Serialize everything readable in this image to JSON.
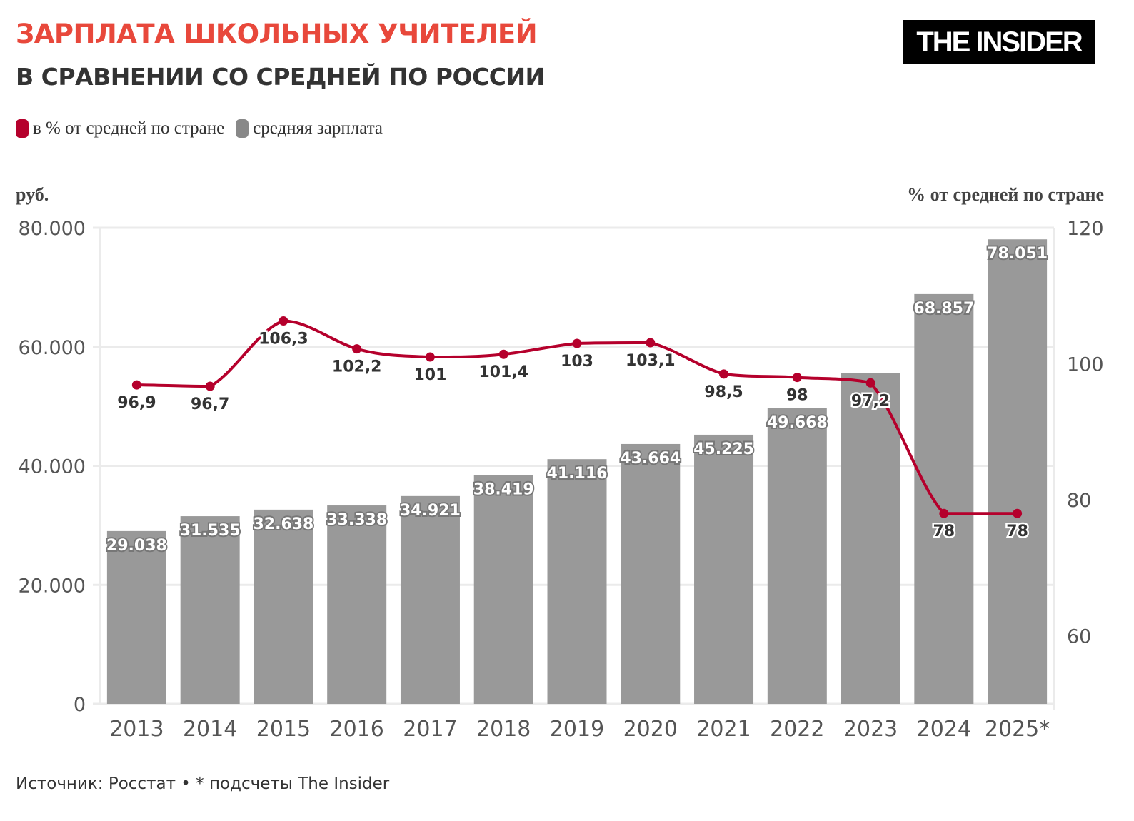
{
  "header": {
    "title": "ЗАРПЛАТА ШКОЛЬНЫХ УЧИТЕЛЕЙ",
    "subtitle": "В СРАВНЕНИИ СО СРЕДНЕЙ ПО РОССИИ",
    "logo": "THE INSIDER"
  },
  "footer": {
    "source": "Источник: Росстат • * подсчеты The Insider"
  },
  "chart_data": {
    "type": "bar+line",
    "categories": [
      "2013",
      "2014",
      "2015",
      "2016",
      "2017",
      "2018",
      "2019",
      "2020",
      "2021",
      "2022",
      "2023",
      "2024",
      "2025*"
    ],
    "series": [
      {
        "name": "средняя зарплата",
        "type": "bar",
        "axis": "left",
        "color": "#999999",
        "values": [
          29038,
          31535,
          32638,
          33338,
          34921,
          38419,
          41116,
          43664,
          45225,
          49668,
          55600,
          68857,
          78051
        ],
        "labels": [
          "29.038",
          "31.535",
          "32.638",
          "33.338",
          "34.921",
          "38.419",
          "41.116",
          "43.664",
          "45.225",
          "49.668",
          "",
          "68.857",
          "78.051"
        ]
      },
      {
        "name": "в % от средней по стране",
        "type": "line",
        "axis": "right",
        "color": "#b5002c",
        "values": [
          96.9,
          96.7,
          106.3,
          102.2,
          101,
          101.4,
          103,
          103.1,
          98.5,
          98,
          97.2,
          78,
          78
        ],
        "labels": [
          "96,9",
          "96,7",
          "106,3",
          "102,2",
          "101",
          "101,4",
          "103",
          "103,1",
          "98,5",
          "98",
          "97,2",
          "78",
          "78"
        ]
      }
    ],
    "left_axis": {
      "label": "руб.",
      "range": [
        0,
        80000
      ],
      "ticks": [
        0,
        20000,
        40000,
        60000,
        80000
      ],
      "tick_labels": [
        "0",
        "20.000",
        "40.000",
        "60.000",
        "80.000"
      ]
    },
    "right_axis": {
      "label": "% от средней по стране",
      "range": [
        50,
        120
      ],
      "ticks": [
        60,
        80,
        100,
        120
      ],
      "tick_labels": [
        "60",
        "80",
        "100",
        "120"
      ]
    },
    "grid": true,
    "legend": "top-left"
  }
}
